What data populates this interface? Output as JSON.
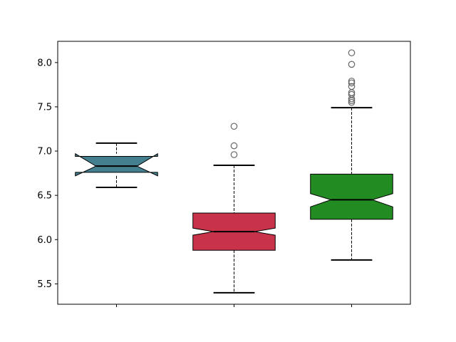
{
  "chart_data": {
    "type": "boxplot",
    "notched": true,
    "title": "",
    "xlabel": "",
    "ylabel": "",
    "xlim": [
      0.5,
      3.5
    ],
    "ylim": [
      5.27,
      8.24
    ],
    "yticks": [
      5.5,
      6.0,
      6.5,
      7.0,
      7.5,
      8.0
    ],
    "ytick_labels": [
      "5.5",
      "6.0",
      "6.5",
      "7.0",
      "7.5",
      "8.0"
    ],
    "xtick_labels": [
      "",
      "",
      ""
    ],
    "grid": false,
    "boxes": [
      {
        "position": 1,
        "color": "#447f8f",
        "whisker_low": 6.59,
        "q1": 6.76,
        "notch_low": 6.72,
        "median": 6.83,
        "notch_high": 6.97,
        "q3": 6.94,
        "whisker_high": 7.09,
        "outliers": []
      },
      {
        "position": 2,
        "color": "#c8334a",
        "whisker_low": 5.4,
        "q1": 5.88,
        "notch_low": 6.05,
        "median": 6.09,
        "notch_high": 6.13,
        "q3": 6.3,
        "whisker_high": 6.84,
        "outliers": [
          7.28,
          7.06,
          6.96
        ]
      },
      {
        "position": 3,
        "color": "#228b22",
        "whisker_low": 5.77,
        "q1": 6.23,
        "notch_low": 6.37,
        "median": 6.45,
        "notch_high": 6.52,
        "q3": 6.74,
        "whisker_high": 7.49,
        "outliers": [
          8.11,
          7.98,
          7.79,
          7.77,
          7.73,
          7.66,
          7.64,
          7.59,
          7.57,
          7.55
        ]
      }
    ]
  }
}
